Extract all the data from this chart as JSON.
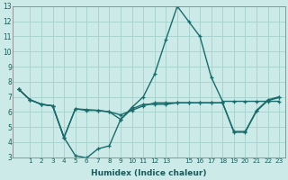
{
  "xlabel": "Humidex (Indice chaleur)",
  "bg_color": "#cceae7",
  "grid_color": "#aad4d0",
  "line_color": "#1a6b6b",
  "xlim": [
    -0.5,
    23.5
  ],
  "ylim": [
    3,
    13
  ],
  "xtick_labels": [
    "1",
    "2",
    "3",
    "4",
    "5",
    "6",
    "7",
    "8",
    "9",
    "10",
    "11",
    "12",
    "13",
    "",
    "15",
    "16",
    "17",
    "18",
    "19",
    "20",
    "21",
    "22",
    "23"
  ],
  "xtick_positions": [
    1,
    2,
    3,
    4,
    5,
    6,
    7,
    8,
    9,
    10,
    11,
    12,
    13,
    14,
    15,
    16,
    17,
    18,
    19,
    20,
    21,
    22,
    23
  ],
  "yticks": [
    3,
    4,
    5,
    6,
    7,
    8,
    9,
    10,
    11,
    12,
    13
  ],
  "series1_x": [
    0,
    1,
    2,
    3,
    4,
    5,
    6,
    7,
    8,
    9,
    10,
    11,
    12,
    13,
    14,
    15,
    16,
    17,
    18,
    19,
    20,
    21,
    22,
    23
  ],
  "series1_y": [
    7.5,
    6.8,
    6.5,
    6.4,
    4.3,
    3.1,
    2.95,
    3.55,
    3.75,
    5.5,
    6.2,
    6.5,
    6.5,
    6.5,
    6.6,
    6.6,
    6.6,
    6.6,
    6.6,
    4.7,
    4.7,
    6.1,
    6.8,
    7.0
  ],
  "series2_x": [
    0,
    1,
    2,
    3,
    4,
    5,
    6,
    7,
    8,
    9,
    10,
    11,
    12,
    13,
    14,
    15,
    16,
    17,
    18,
    19,
    20,
    21,
    22,
    23
  ],
  "series2_y": [
    7.5,
    6.8,
    6.5,
    6.4,
    4.3,
    6.2,
    6.1,
    6.1,
    6.0,
    5.5,
    6.3,
    7.0,
    8.5,
    10.8,
    13.0,
    12.0,
    11.0,
    8.3,
    6.7,
    6.7,
    6.7,
    6.7,
    6.7,
    6.7
  ],
  "series3_x": [
    0,
    1,
    2,
    3,
    4,
    5,
    6,
    7,
    8,
    9,
    10,
    11,
    12,
    13,
    14,
    15,
    16,
    17,
    18,
    19,
    20,
    21,
    22,
    23
  ],
  "series3_y": [
    7.5,
    6.8,
    6.5,
    6.4,
    4.3,
    6.2,
    6.15,
    6.1,
    6.0,
    5.8,
    6.1,
    6.4,
    6.6,
    6.6,
    6.6,
    6.6,
    6.6,
    6.6,
    6.6,
    4.65,
    4.65,
    6.05,
    6.75,
    6.95
  ]
}
